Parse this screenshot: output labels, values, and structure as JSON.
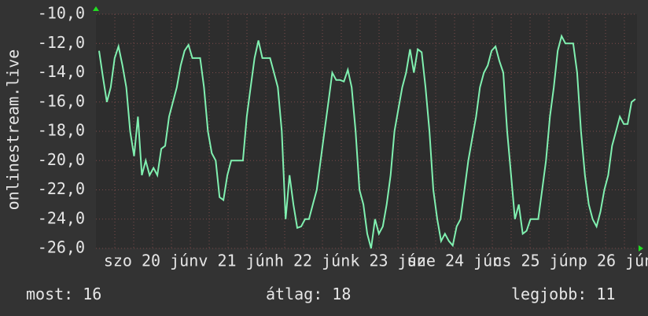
{
  "chart_data": {
    "type": "line",
    "ylabel": "onlinestream.live",
    "xtick_labels": [
      "szo 20 jún",
      "v 21 jún",
      "h 22 jún",
      "k 23 jún",
      "sze 24 jún",
      "cs 25 jún",
      "p 26 jún"
    ],
    "series": [
      {
        "color": "#80f0b0",
        "values": [
          -12.5,
          -14.3,
          -16,
          -15,
          -13,
          -12.2,
          -13.5,
          -15,
          -18,
          -19.7,
          -17,
          -21,
          -20,
          -21,
          -20.5,
          -21,
          -19.2,
          -19,
          -17,
          -16,
          -15,
          -13.5,
          -12.5,
          -12.1,
          -13,
          -13,
          -13,
          -15,
          -18,
          -19.5,
          -20,
          -22.5,
          -22.7,
          -21,
          -20,
          -20,
          -20,
          -20,
          -17,
          -15,
          -13,
          -11.8,
          -13,
          -13,
          -13,
          -14,
          -15,
          -18,
          -24,
          -21,
          -23,
          -24.6,
          -24.5,
          -24,
          -24,
          -23,
          -22,
          -20,
          -18,
          -16,
          -14,
          -14.5,
          -14.5,
          -14.6,
          -13.8,
          -15,
          -18,
          -22,
          -23,
          -25,
          -26,
          -24,
          -25,
          -24.5,
          -23,
          -21,
          -18,
          -16.5,
          -15,
          -14,
          -12.4,
          -14,
          -12.4,
          -12.6,
          -15,
          -18,
          -22,
          -24,
          -25.5,
          -25,
          -25.5,
          -25.8,
          -24.5,
          -24,
          -22,
          -20,
          -18.5,
          -17,
          -15,
          -14,
          -13.5,
          -12.5,
          -12.2,
          -13.2,
          -14,
          -18,
          -21,
          -24,
          -23,
          -25,
          -24.8,
          -24,
          -24,
          -24,
          -22,
          -20,
          -17,
          -15,
          -12.5,
          -11.5,
          -12,
          -12,
          -12,
          -14,
          -18,
          -21,
          -23,
          -24,
          -24.5,
          -23.5,
          -22,
          -21,
          -19,
          -18,
          -17,
          -17.5,
          -17.5,
          -16,
          -15.8
        ]
      }
    ],
    "ylim": [
      -26,
      -10
    ],
    "yticks": [
      {
        "value": -10,
        "label": "-10,0"
      },
      {
        "value": -12,
        "label": "-12,0"
      },
      {
        "value": -14,
        "label": "-14,0"
      },
      {
        "value": -16,
        "label": "-16,0"
      },
      {
        "value": -18,
        "label": "-18,0"
      },
      {
        "value": -20,
        "label": "-20,0"
      },
      {
        "value": -22,
        "label": "-22,0"
      },
      {
        "value": -24,
        "label": "-24,0"
      },
      {
        "value": -26,
        "label": "-26,0"
      }
    ],
    "grid": true,
    "stats": [
      {
        "label": "most:",
        "value": 16
      },
      {
        "label": "átlag:",
        "value": 18
      },
      {
        "label": "legjobb:",
        "value": 11
      }
    ]
  }
}
